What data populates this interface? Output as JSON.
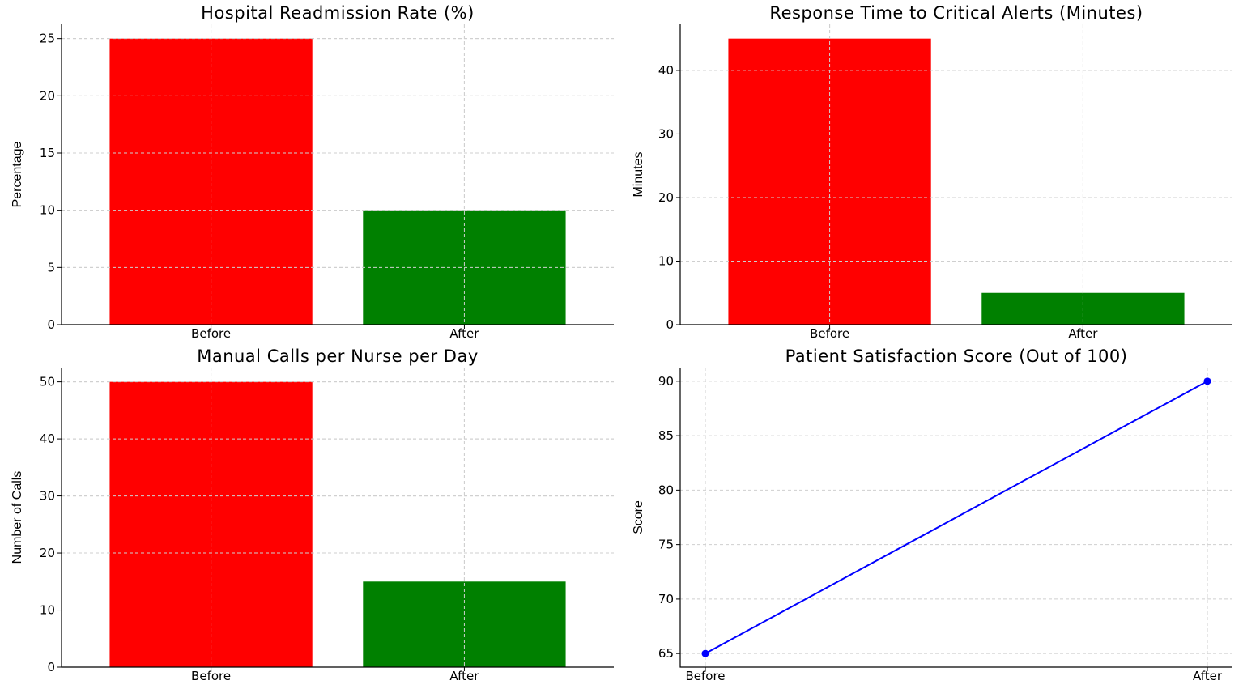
{
  "chart_data": [
    {
      "type": "bar",
      "title": "Hospital Readmission Rate (%)",
      "xlabel": "",
      "ylabel": "Percentage",
      "categories": [
        "Before",
        "After"
      ],
      "values": [
        25,
        10
      ],
      "colors": [
        "#ff0000",
        "#008000"
      ],
      "ylim": [
        0,
        26.25
      ],
      "yticks": [
        0,
        5,
        10,
        15,
        20,
        25
      ],
      "grid": true
    },
    {
      "type": "bar",
      "title": "Response Time to Critical Alerts (Minutes)",
      "xlabel": "",
      "ylabel": "Minutes",
      "categories": [
        "Before",
        "After"
      ],
      "values": [
        45,
        5
      ],
      "colors": [
        "#ff0000",
        "#008000"
      ],
      "ylim": [
        0,
        47.25
      ],
      "yticks": [
        0,
        10,
        20,
        30,
        40
      ],
      "grid": true
    },
    {
      "type": "bar",
      "title": "Manual Calls per Nurse per Day",
      "xlabel": "",
      "ylabel": "Number of Calls",
      "categories": [
        "Before",
        "After"
      ],
      "values": [
        50,
        15
      ],
      "colors": [
        "#ff0000",
        "#008000"
      ],
      "ylim": [
        0,
        52.5
      ],
      "yticks": [
        0,
        10,
        20,
        30,
        40,
        50
      ],
      "grid": true
    },
    {
      "type": "line",
      "title": "Patient Satisfaction Score (Out of 100)",
      "xlabel": "",
      "ylabel": "Score",
      "categories": [
        "Before",
        "After"
      ],
      "values": [
        65,
        90
      ],
      "colors": [
        "#0000ff"
      ],
      "ylim": [
        63.75,
        91.25
      ],
      "yticks": [
        65,
        70,
        75,
        80,
        85,
        90
      ],
      "grid": true
    }
  ]
}
